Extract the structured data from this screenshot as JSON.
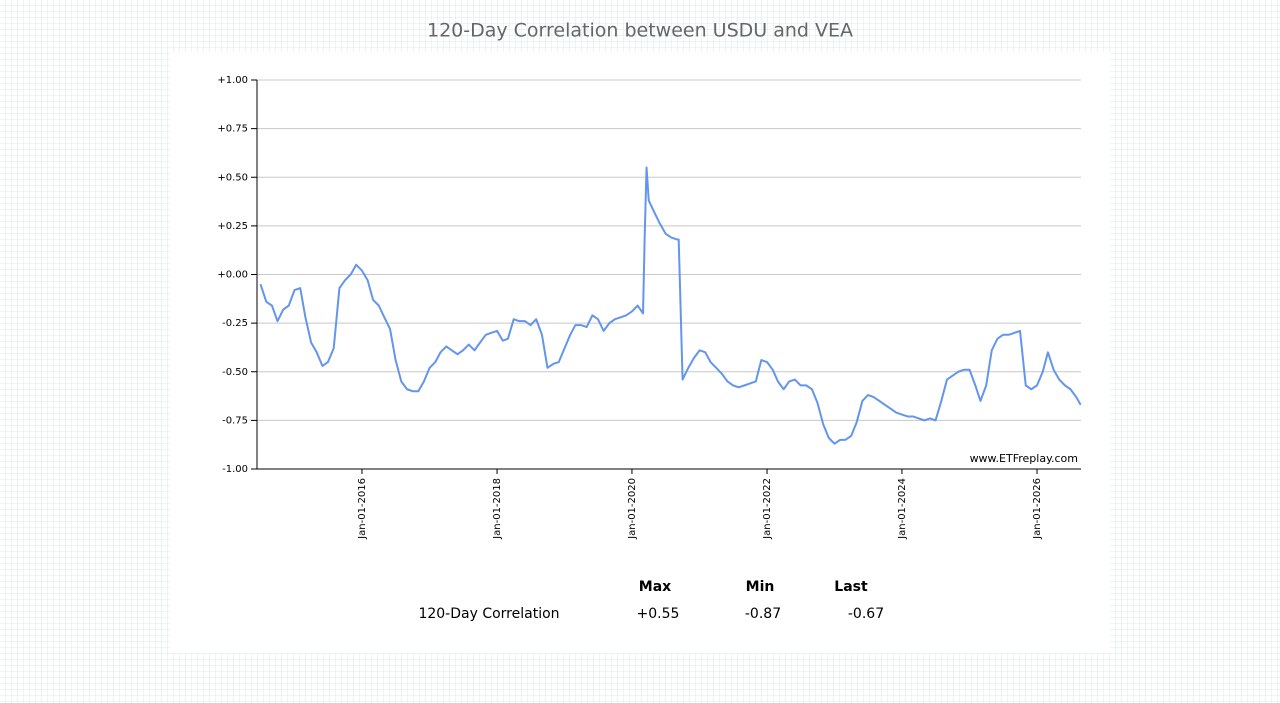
{
  "chart_data": {
    "type": "line",
    "title": "120-Day Correlation between USDU and VEA",
    "annotation": "www.ETFreplay.com",
    "xlim": [
      "2014-06-12",
      "2026-08-27"
    ],
    "xticks": [
      {
        "value": "2016-01-01",
        "label": "Jan-01-2016"
      },
      {
        "value": "2018-01-01",
        "label": "Jan-01-2018"
      },
      {
        "value": "2020-01-01",
        "label": "Jan-01-2020"
      },
      {
        "value": "2022-01-01",
        "label": "Jan-01-2022"
      },
      {
        "value": "2024-01-01",
        "label": "Jan-01-2024"
      },
      {
        "value": "2026-01-01",
        "label": "Jan-01-2026"
      }
    ],
    "ylim": [
      -1,
      1
    ],
    "yticks": [
      {
        "value": -1,
        "label": "-1.00"
      },
      {
        "value": -0.75,
        "label": "-0.75"
      },
      {
        "value": -0.5,
        "label": "-0.50"
      },
      {
        "value": -0.25,
        "label": "-0.25"
      },
      {
        "value": 0,
        "label": "+0.00"
      },
      {
        "value": 0.25,
        "label": "+0.25"
      },
      {
        "value": 0.5,
        "label": "+0.50"
      },
      {
        "value": 0.75,
        "label": "+0.75"
      },
      {
        "value": 1,
        "label": "+1.00"
      }
    ],
    "grid": true,
    "x": [
      "2014-07-01",
      "2014-08-01",
      "2014-09-01",
      "2014-10-01",
      "2014-11-01",
      "2014-12-01",
      "2015-01-01",
      "2015-02-01",
      "2015-03-01",
      "2015-04-01",
      "2015-05-01",
      "2015-06-01",
      "2015-07-01",
      "2015-08-01",
      "2015-09-01",
      "2015-10-01",
      "2015-11-01",
      "2015-12-01",
      "2016-01-01",
      "2016-02-01",
      "2016-03-01",
      "2016-04-01",
      "2016-05-01",
      "2016-06-01",
      "2016-07-01",
      "2016-08-01",
      "2016-09-01",
      "2016-10-01",
      "2016-11-01",
      "2016-12-01",
      "2017-01-01",
      "2017-02-01",
      "2017-03-01",
      "2017-04-01",
      "2017-05-01",
      "2017-06-01",
      "2017-07-01",
      "2017-08-01",
      "2017-09-01",
      "2017-10-01",
      "2017-11-01",
      "2017-12-01",
      "2018-01-01",
      "2018-02-01",
      "2018-03-01",
      "2018-04-01",
      "2018-05-01",
      "2018-06-01",
      "2018-07-01",
      "2018-08-01",
      "2018-09-01",
      "2018-10-01",
      "2018-11-01",
      "2018-12-01",
      "2019-01-01",
      "2019-02-01",
      "2019-03-01",
      "2019-04-01",
      "2019-05-01",
      "2019-06-01",
      "2019-07-01",
      "2019-08-01",
      "2019-09-01",
      "2019-10-01",
      "2019-11-01",
      "2019-12-01",
      "2020-01-01",
      "2020-02-01",
      "2020-03-01",
      "2020-03-10",
      "2020-03-20",
      "2020-04-01",
      "2020-05-01",
      "2020-06-01",
      "2020-07-01",
      "2020-08-01",
      "2020-09-01",
      "2020-09-10",
      "2020-10-01",
      "2020-11-01",
      "2020-12-01",
      "2021-01-01",
      "2021-02-01",
      "2021-03-01",
      "2021-04-01",
      "2021-05-01",
      "2021-06-01",
      "2021-07-01",
      "2021-08-01",
      "2021-09-01",
      "2021-10-01",
      "2021-11-01",
      "2021-12-01",
      "2022-01-01",
      "2022-02-01",
      "2022-03-01",
      "2022-04-01",
      "2022-05-01",
      "2022-06-01",
      "2022-07-01",
      "2022-08-01",
      "2022-09-01",
      "2022-10-01",
      "2022-11-01",
      "2022-12-01",
      "2023-01-01",
      "2023-02-01",
      "2023-03-01",
      "2023-04-01",
      "2023-05-01",
      "2023-06-01",
      "2023-07-01",
      "2023-08-01",
      "2023-09-01",
      "2023-10-01",
      "2023-11-01",
      "2023-12-01",
      "2024-01-01",
      "2024-02-01",
      "2024-03-01",
      "2024-04-01",
      "2024-05-01",
      "2024-06-01",
      "2024-07-01",
      "2024-08-01",
      "2024-09-01",
      "2024-10-01",
      "2024-11-01",
      "2024-12-01",
      "2025-01-01",
      "2025-02-01",
      "2025-03-01",
      "2025-04-01",
      "2025-05-01",
      "2025-06-01",
      "2025-07-01",
      "2025-08-01",
      "2025-09-01",
      "2025-10-01",
      "2025-11-01",
      "2025-12-01",
      "2026-01-01",
      "2026-02-01",
      "2026-03-01",
      "2026-04-01",
      "2026-05-01",
      "2026-06-01",
      "2026-07-01",
      "2026-08-01",
      "2026-08-25"
    ],
    "series": [
      {
        "name": "120-Day Correlation",
        "color": "#6495ed",
        "values": [
          -0.05,
          -0.14,
          -0.16,
          -0.24,
          -0.18,
          -0.16,
          -0.08,
          -0.07,
          -0.22,
          -0.35,
          -0.4,
          -0.47,
          -0.45,
          -0.38,
          -0.07,
          -0.03,
          0.0,
          0.05,
          0.02,
          -0.03,
          -0.13,
          -0.16,
          -0.22,
          -0.28,
          -0.44,
          -0.55,
          -0.59,
          -0.6,
          -0.6,
          -0.55,
          -0.48,
          -0.45,
          -0.4,
          -0.37,
          -0.39,
          -0.41,
          -0.39,
          -0.36,
          -0.39,
          -0.35,
          -0.31,
          -0.3,
          -0.29,
          -0.34,
          -0.33,
          -0.23,
          -0.24,
          -0.24,
          -0.26,
          -0.23,
          -0.31,
          -0.48,
          -0.46,
          -0.45,
          -0.38,
          -0.31,
          -0.26,
          -0.26,
          -0.27,
          -0.21,
          -0.23,
          -0.29,
          -0.25,
          -0.23,
          -0.22,
          -0.21,
          -0.19,
          -0.16,
          -0.2,
          0.2,
          0.55,
          0.38,
          0.32,
          0.26,
          0.21,
          0.19,
          0.18,
          0.18,
          -0.54,
          -0.48,
          -0.43,
          -0.39,
          -0.4,
          -0.45,
          -0.48,
          -0.51,
          -0.55,
          -0.57,
          -0.58,
          -0.57,
          -0.56,
          -0.55,
          -0.44,
          -0.45,
          -0.49,
          -0.55,
          -0.59,
          -0.55,
          -0.54,
          -0.57,
          -0.57,
          -0.59,
          -0.66,
          -0.77,
          -0.84,
          -0.87,
          -0.85,
          -0.85,
          -0.83,
          -0.76,
          -0.65,
          -0.62,
          -0.63,
          -0.65,
          -0.67,
          -0.69,
          -0.71,
          -0.72,
          -0.73,
          -0.73,
          -0.74,
          -0.75,
          -0.74,
          -0.75,
          -0.65,
          -0.54,
          -0.52,
          -0.5,
          -0.49,
          -0.49,
          -0.57,
          -0.65,
          -0.57,
          -0.39,
          -0.33,
          -0.31,
          -0.31,
          -0.3,
          -0.29,
          -0.57,
          -0.59,
          -0.57,
          -0.5,
          -0.4,
          -0.49,
          -0.54,
          -0.57,
          -0.59,
          -0.63,
          -0.67
        ]
      }
    ]
  },
  "stats_table": {
    "headers": [
      "Max",
      "Min",
      "Last"
    ],
    "row_label": "120-Day Correlation",
    "row": [
      "+0.55",
      "-0.87",
      "-0.67"
    ]
  }
}
